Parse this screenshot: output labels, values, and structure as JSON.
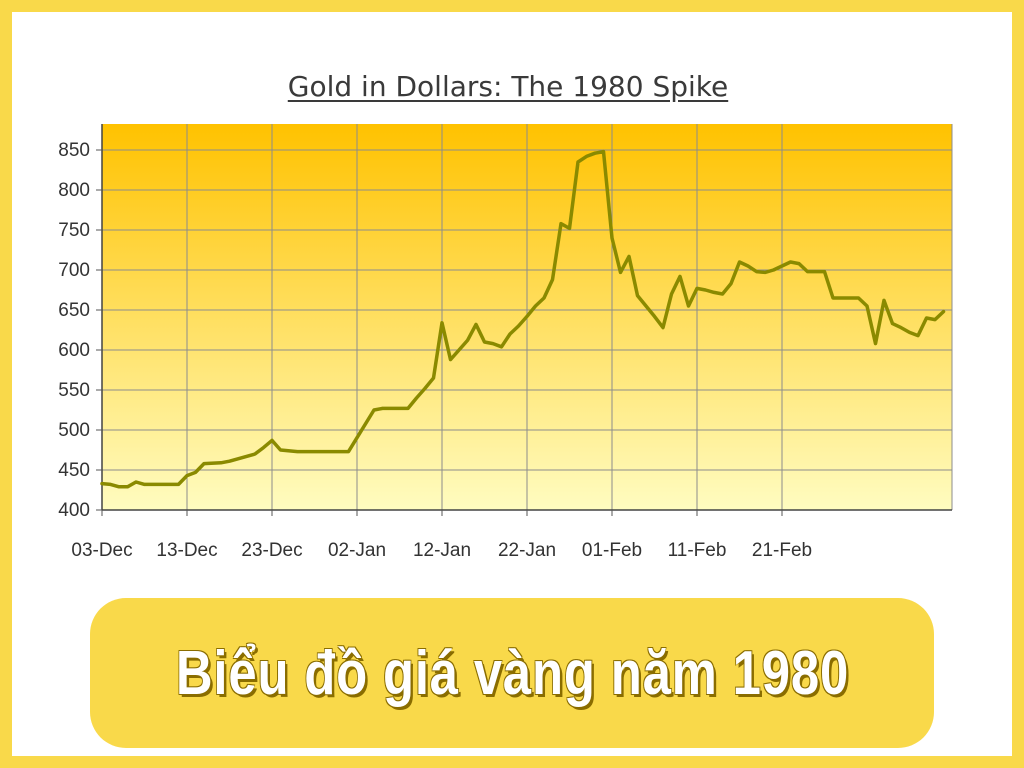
{
  "chart_data": {
    "type": "line",
    "title": "Gold in Dollars: The 1980 Spike",
    "xlabel": "",
    "ylabel": "",
    "ylim": [
      400,
      850
    ],
    "yticks": [
      400,
      450,
      500,
      550,
      600,
      650,
      700,
      750,
      800,
      850
    ],
    "xtick_labels": [
      "03-Dec",
      "13-Dec",
      "23-Dec",
      "02-Jan",
      "12-Jan",
      "22-Jan",
      "01-Feb",
      "11-Feb",
      "21-Feb"
    ],
    "grid": true,
    "legend": "none",
    "colors": {
      "line": "#8a8a00",
      "gradient_top": "#ffc200",
      "gradient_bottom": "#fffcc0",
      "grid": "#8c8c8c",
      "frame": "#f9d94a"
    },
    "series": [
      {
        "values": [
          {
            "x": "1979-12-03",
            "y": 433
          },
          {
            "x": "1979-12-04",
            "y": 432
          },
          {
            "x": "1979-12-05",
            "y": 429
          },
          {
            "x": "1979-12-06",
            "y": 429
          },
          {
            "x": "1979-12-07",
            "y": 435
          },
          {
            "x": "1979-12-08",
            "y": 432
          },
          {
            "x": "1979-12-10",
            "y": 432
          },
          {
            "x": "1979-12-11",
            "y": 432
          },
          {
            "x": "1979-12-12",
            "y": 432
          },
          {
            "x": "1979-12-13",
            "y": 443
          },
          {
            "x": "1979-12-14",
            "y": 447
          },
          {
            "x": "1979-12-15",
            "y": 458
          },
          {
            "x": "1979-12-17",
            "y": 459
          },
          {
            "x": "1979-12-18",
            "y": 461
          },
          {
            "x": "1979-12-19",
            "y": 464
          },
          {
            "x": "1979-12-20",
            "y": 467
          },
          {
            "x": "1979-12-21",
            "y": 470
          },
          {
            "x": "1979-12-22",
            "y": 478
          },
          {
            "x": "1979-12-23",
            "y": 487
          },
          {
            "x": "1979-12-24",
            "y": 475
          },
          {
            "x": "1979-12-26",
            "y": 473
          },
          {
            "x": "1979-12-28",
            "y": 473
          },
          {
            "x": "1979-12-30",
            "y": 473
          },
          {
            "x": "1979-12-31",
            "y": 473
          },
          {
            "x": "1980-01-01",
            "y": 473
          },
          {
            "x": "1980-01-04",
            "y": 525
          },
          {
            "x": "1980-01-05",
            "y": 527
          },
          {
            "x": "1980-01-07",
            "y": 527
          },
          {
            "x": "1980-01-08",
            "y": 527
          },
          {
            "x": "1980-01-09",
            "y": 540
          },
          {
            "x": "1980-01-10",
            "y": 552
          },
          {
            "x": "1980-01-11",
            "y": 565
          },
          {
            "x": "1980-01-12",
            "y": 634
          },
          {
            "x": "1980-01-13",
            "y": 588
          },
          {
            "x": "1980-01-14",
            "y": 600
          },
          {
            "x": "1980-01-15",
            "y": 612
          },
          {
            "x": "1980-01-16",
            "y": 632
          },
          {
            "x": "1980-01-17",
            "y": 610
          },
          {
            "x": "1980-01-18",
            "y": 608
          },
          {
            "x": "1980-01-19",
            "y": 604
          },
          {
            "x": "1980-01-20",
            "y": 620
          },
          {
            "x": "1980-01-21",
            "y": 630
          },
          {
            "x": "1980-01-22",
            "y": 642
          },
          {
            "x": "1980-01-23",
            "y": 655
          },
          {
            "x": "1980-01-24",
            "y": 665
          },
          {
            "x": "1980-01-25",
            "y": 688
          },
          {
            "x": "1980-01-26",
            "y": 758
          },
          {
            "x": "1980-01-27",
            "y": 752
          },
          {
            "x": "1980-01-28",
            "y": 835
          },
          {
            "x": "1980-01-29",
            "y": 842
          },
          {
            "x": "1980-01-30",
            "y": 846
          },
          {
            "x": "1980-01-31",
            "y": 848
          },
          {
            "x": "1980-02-01",
            "y": 740
          },
          {
            "x": "1980-02-02",
            "y": 697
          },
          {
            "x": "1980-02-03",
            "y": 717
          },
          {
            "x": "1980-02-04",
            "y": 668
          },
          {
            "x": "1980-02-05",
            "y": 655
          },
          {
            "x": "1980-02-06",
            "y": 642
          },
          {
            "x": "1980-02-07",
            "y": 628
          },
          {
            "x": "1980-02-08",
            "y": 670
          },
          {
            "x": "1980-02-09",
            "y": 692
          },
          {
            "x": "1980-02-10",
            "y": 655
          },
          {
            "x": "1980-02-11",
            "y": 677
          },
          {
            "x": "1980-02-12",
            "y": 675
          },
          {
            "x": "1980-02-13",
            "y": 672
          },
          {
            "x": "1980-02-14",
            "y": 670
          },
          {
            "x": "1980-02-15",
            "y": 683
          },
          {
            "x": "1980-02-16",
            "y": 710
          },
          {
            "x": "1980-02-17",
            "y": 705
          },
          {
            "x": "1980-02-18",
            "y": 698
          },
          {
            "x": "1980-02-19",
            "y": 697
          },
          {
            "x": "1980-02-20",
            "y": 700
          },
          {
            "x": "1980-02-21",
            "y": 705
          },
          {
            "x": "1980-02-22",
            "y": 710
          },
          {
            "x": "1980-02-23",
            "y": 708
          },
          {
            "x": "1980-02-24",
            "y": 698
          },
          {
            "x": "1980-02-25",
            "y": 698
          },
          {
            "x": "1980-02-26",
            "y": 698
          },
          {
            "x": "1980-02-27",
            "y": 665
          },
          {
            "x": "1980-02-28",
            "y": 665
          },
          {
            "x": "1980-02-29",
            "y": 665
          },
          {
            "x": "1980-03-01",
            "y": 665
          },
          {
            "x": "1980-03-02",
            "y": 655
          },
          {
            "x": "1980-03-03",
            "y": 608
          },
          {
            "x": "1980-03-04",
            "y": 662
          },
          {
            "x": "1980-03-05",
            "y": 633
          },
          {
            "x": "1980-03-06",
            "y": 628
          },
          {
            "x": "1980-03-07",
            "y": 622
          },
          {
            "x": "1980-03-08",
            "y": 618
          },
          {
            "x": "1980-03-09",
            "y": 640
          },
          {
            "x": "1980-03-10",
            "y": 638
          },
          {
            "x": "1980-03-11",
            "y": 648
          }
        ]
      }
    ]
  },
  "banner": {
    "text": "Biểu đồ giá vàng năm 1980"
  }
}
